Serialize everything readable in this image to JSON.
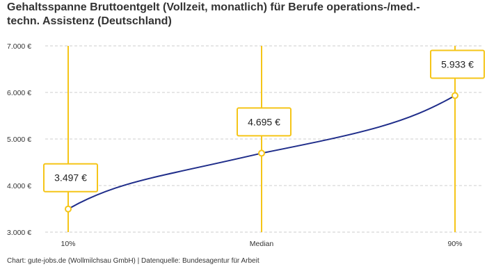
{
  "title": "Gehaltsspanne Bruttoentgelt (Vollzeit, monatlich) für Berufe operations-/med.-technische Assistenz (Deutschland)",
  "title_display": "Gehaltsspanne Bruttoentgelt (Vollzeit, monatlich) für Berufe operations-/med.- techn. Assistenz (Deutschland)",
  "footer": "Chart: gute-jobs.de (Wollmilchsau GmbH) | Datenquelle: Bundesagentur für Arbeit",
  "chart_data": {
    "type": "line",
    "categories": [
      "10%",
      "Median",
      "90%"
    ],
    "values": [
      3497,
      4695,
      5933
    ],
    "data_labels": [
      "3.497 €",
      "4.695 €",
      "5.933 €"
    ],
    "ylim": [
      3000,
      7000
    ],
    "yticks": [
      3000,
      4000,
      5000,
      6000,
      7000
    ],
    "ytick_labels": [
      "3.000 €",
      "4.000 €",
      "5.000 €",
      "6.000 €",
      "7.000 €"
    ],
    "grid": true,
    "colors": {
      "line": "#1f2d8a",
      "marker": "#f5c518",
      "grid": "#cccccc"
    }
  }
}
